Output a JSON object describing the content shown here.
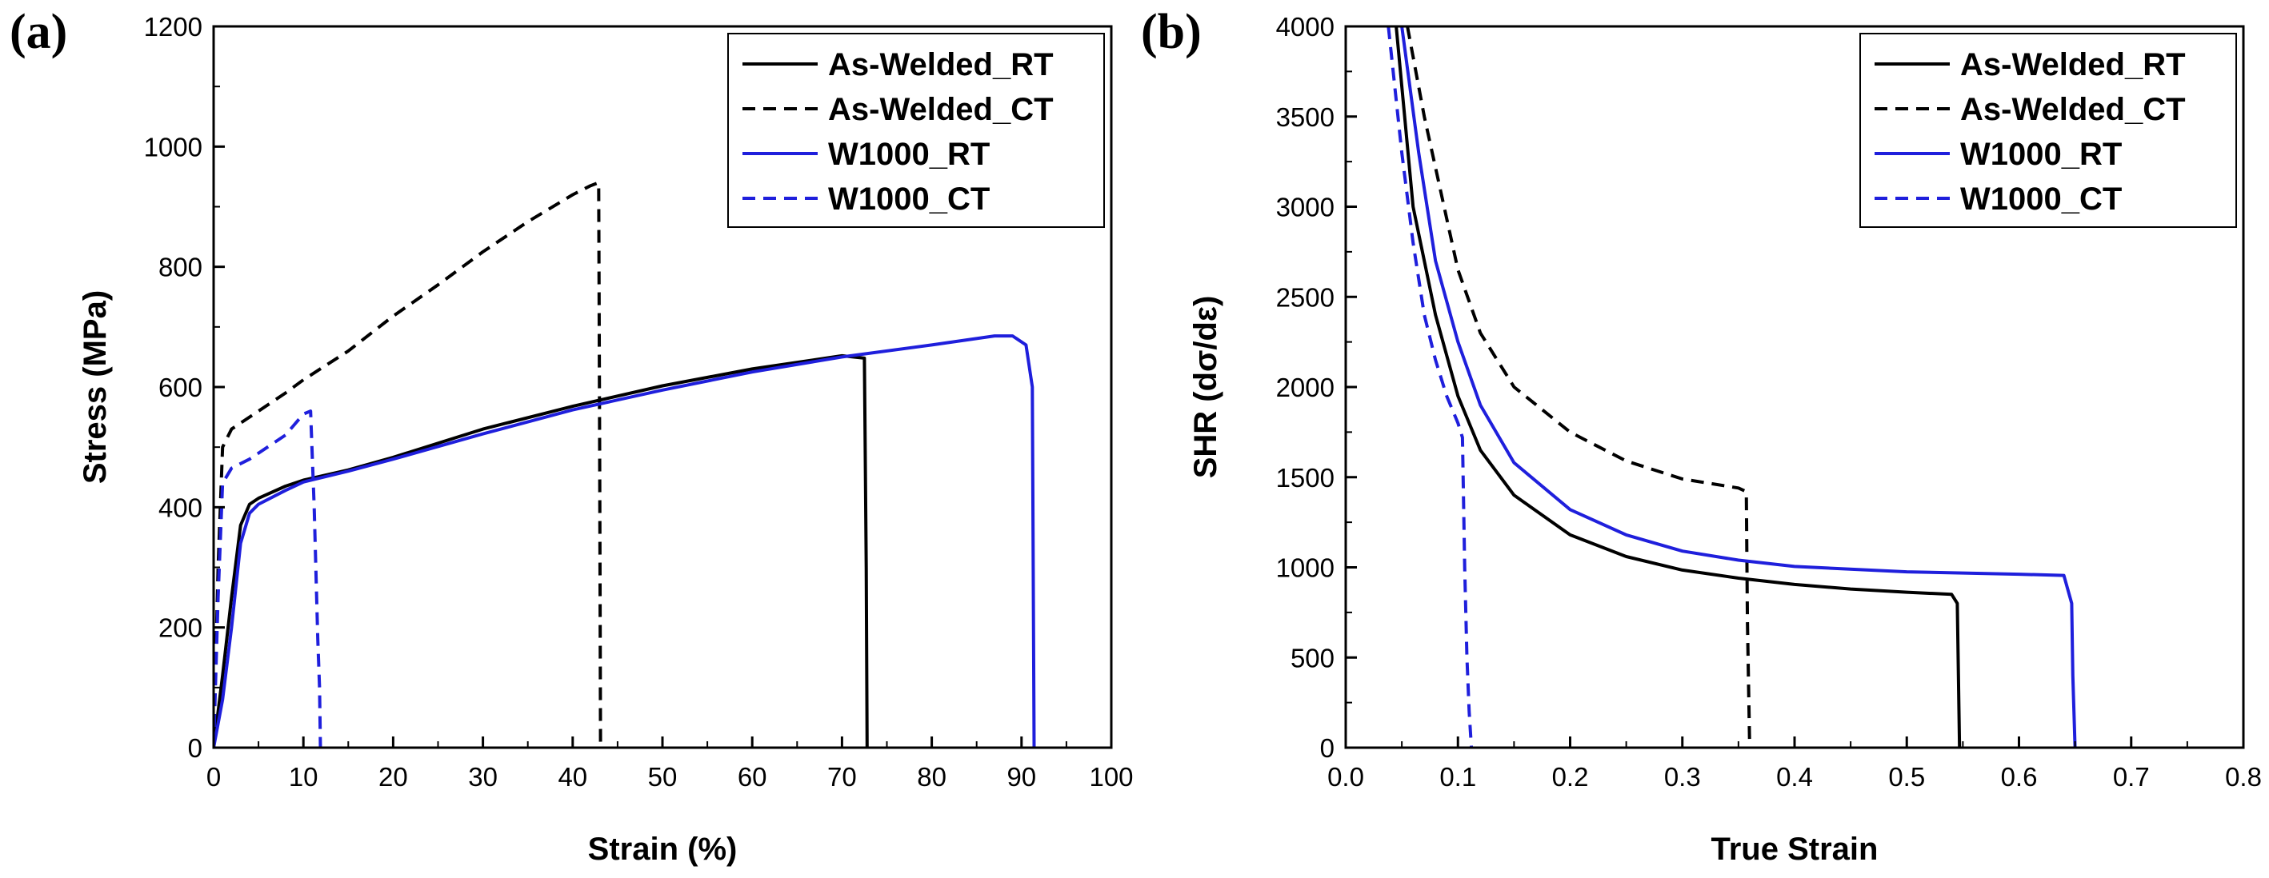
{
  "figure": {
    "panels": [
      "(a)",
      "(b)"
    ]
  },
  "colors": {
    "black_series": "#000000",
    "blue_series": "#1f1fdc"
  },
  "chart_data": [
    {
      "id": "a",
      "type": "line",
      "panel_label": "(a)",
      "xlabel": "Strain (%)",
      "ylabel": "Stress (MPa)",
      "xlim": [
        0,
        100
      ],
      "ylim": [
        0,
        1200
      ],
      "xticks": [
        0,
        10,
        20,
        30,
        40,
        50,
        60,
        70,
        80,
        90,
        100
      ],
      "yticks": [
        0,
        200,
        400,
        600,
        800,
        1000,
        1200
      ],
      "legend_position": "top-right",
      "series": [
        {
          "name": "As-Welded_RT",
          "color": "#000000",
          "dash": "solid",
          "x": [
            0,
            1,
            2,
            3,
            4,
            5,
            8,
            10,
            15,
            20,
            30,
            40,
            50,
            60,
            70,
            72.5,
            72.7,
            72.8
          ],
          "y": [
            0,
            120,
            250,
            370,
            405,
            415,
            435,
            445,
            462,
            483,
            530,
            568,
            602,
            630,
            652,
            648,
            300,
            0
          ]
        },
        {
          "name": "As-Welded_CT",
          "color": "#000000",
          "dash": "dashed",
          "x": [
            0,
            0.5,
            1,
            2,
            5,
            8,
            10,
            15,
            20,
            25,
            30,
            35,
            40,
            42,
            42.9,
            43,
            43.1
          ],
          "y": [
            0,
            300,
            500,
            530,
            560,
            590,
            612,
            660,
            718,
            770,
            825,
            875,
            920,
            935,
            940,
            500,
            0
          ]
        },
        {
          "name": "W1000_RT",
          "color": "#1f1fdc",
          "dash": "solid",
          "x": [
            0,
            1,
            2,
            3,
            4,
            5,
            8,
            10,
            15,
            20,
            30,
            40,
            50,
            60,
            70,
            80,
            87,
            89,
            90.5,
            91.2,
            91.3,
            91.4
          ],
          "y": [
            0,
            80,
            200,
            340,
            390,
            405,
            428,
            442,
            460,
            480,
            522,
            562,
            595,
            625,
            650,
            670,
            685,
            685,
            670,
            600,
            300,
            0
          ]
        },
        {
          "name": "W1000_CT",
          "color": "#1f1fdc",
          "dash": "dashed",
          "x": [
            0,
            0.5,
            1,
            2,
            4,
            6,
            8,
            10,
            10.8,
            11.2,
            11.6,
            11.8,
            11.9
          ],
          "y": [
            0,
            250,
            440,
            465,
            480,
            500,
            520,
            555,
            560,
            400,
            180,
            100,
            0
          ]
        }
      ]
    },
    {
      "id": "b",
      "type": "line",
      "panel_label": "(b)",
      "xlabel": "True Strain",
      "ylabel": "SHR (dσ/dε)",
      "xlim": [
        0.0,
        0.8
      ],
      "ylim": [
        0,
        4000
      ],
      "xticks": [
        0.0,
        0.1,
        0.2,
        0.3,
        0.4,
        0.5,
        0.6,
        0.7,
        0.8
      ],
      "yticks": [
        0,
        500,
        1000,
        1500,
        2000,
        2500,
        3000,
        3500,
        4000
      ],
      "legend_position": "top-right",
      "series": [
        {
          "name": "As-Welded_RT",
          "color": "#000000",
          "dash": "solid",
          "x": [
            0.045,
            0.06,
            0.08,
            0.1,
            0.12,
            0.15,
            0.2,
            0.25,
            0.3,
            0.35,
            0.4,
            0.45,
            0.5,
            0.54,
            0.545,
            0.546,
            0.547
          ],
          "y": [
            4000,
            3000,
            2400,
            1950,
            1650,
            1400,
            1180,
            1060,
            985,
            940,
            905,
            880,
            862,
            850,
            800,
            400,
            0
          ]
        },
        {
          "name": "As-Welded_CT",
          "color": "#000000",
          "dash": "dashed",
          "x": [
            0.055,
            0.07,
            0.1,
            0.12,
            0.15,
            0.2,
            0.25,
            0.3,
            0.35,
            0.357,
            0.358,
            0.36
          ],
          "y": [
            4000,
            3500,
            2650,
            2300,
            2000,
            1750,
            1590,
            1490,
            1440,
            1420,
            700,
            0
          ]
        },
        {
          "name": "W1000_RT",
          "color": "#1f1fdc",
          "dash": "solid",
          "x": [
            0.05,
            0.065,
            0.08,
            0.1,
            0.12,
            0.15,
            0.2,
            0.25,
            0.3,
            0.35,
            0.4,
            0.5,
            0.6,
            0.64,
            0.647,
            0.648,
            0.65
          ],
          "y": [
            4000,
            3300,
            2700,
            2250,
            1900,
            1580,
            1320,
            1180,
            1090,
            1040,
            1005,
            975,
            962,
            955,
            800,
            400,
            0
          ]
        },
        {
          "name": "W1000_CT",
          "color": "#1f1fdc",
          "dash": "dashed",
          "x": [
            0.038,
            0.05,
            0.06,
            0.07,
            0.08,
            0.09,
            0.1,
            0.104,
            0.106,
            0.108,
            0.11,
            0.112
          ],
          "y": [
            4000,
            3300,
            2800,
            2400,
            2150,
            1950,
            1800,
            1720,
            1000,
            500,
            200,
            0
          ]
        }
      ]
    }
  ]
}
